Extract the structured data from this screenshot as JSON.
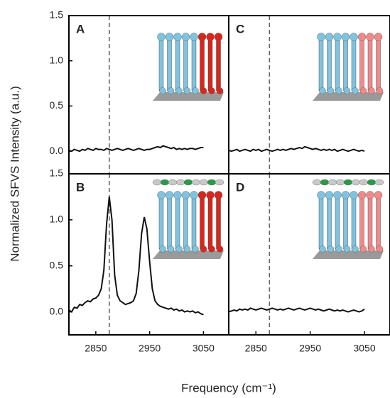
{
  "shared": {
    "ylabel": "Normalized SFVS Intensity (a.u.)",
    "xlabel": "Frequency (cm⁻¹)"
  },
  "chart_data": [
    {
      "type": "line",
      "label": "A",
      "color": "#111111",
      "reference_line_x": 2875,
      "xlim": [
        2800,
        3097
      ],
      "ylim": [
        -0.25,
        1.5
      ],
      "yticks": [
        {
          "value": 0,
          "label": "0.0"
        },
        {
          "value": 0.5,
          "label": "0.5"
        },
        {
          "value": 1,
          "label": "1.0"
        },
        {
          "value": 1.5,
          "label": "1.5"
        }
      ],
      "x": [
        2800,
        2805,
        2810,
        2815,
        2820,
        2825,
        2830,
        2835,
        2840,
        2845,
        2850,
        2855,
        2860,
        2865,
        2870,
        2875,
        2880,
        2885,
        2890,
        2895,
        2900,
        2905,
        2910,
        2915,
        2920,
        2925,
        2930,
        2935,
        2940,
        2945,
        2950,
        2955,
        2960,
        2965,
        2970,
        2975,
        2980,
        2985,
        2990,
        2995,
        3000,
        3005,
        3010,
        3015,
        3020,
        3025,
        3030,
        3035,
        3040,
        3045,
        3050
      ],
      "values": [
        0.01,
        0.0,
        0.02,
        0.01,
        0.0,
        0.02,
        0.01,
        0.03,
        0.02,
        0.01,
        0.03,
        0.02,
        0.02,
        0.01,
        0.03,
        0.02,
        0.01,
        0.02,
        0.03,
        0.02,
        0.01,
        0.02,
        0.03,
        0.02,
        0.01,
        0.02,
        0.03,
        0.02,
        0.01,
        0.02,
        0.02,
        0.03,
        0.04,
        0.05,
        0.04,
        0.06,
        0.05,
        0.04,
        0.03,
        0.04,
        0.02,
        0.03,
        0.02,
        0.03,
        0.02,
        0.03,
        0.03,
        0.02,
        0.03,
        0.04,
        0.04
      ]
    },
    {
      "type": "line",
      "label": "C",
      "color": "#111111",
      "reference_line_x": 2875,
      "xlim": [
        2800,
        3097
      ],
      "ylim": [
        -0.25,
        1.5
      ],
      "x": [
        2800,
        2805,
        2810,
        2815,
        2820,
        2825,
        2830,
        2835,
        2840,
        2845,
        2850,
        2855,
        2860,
        2865,
        2870,
        2875,
        2880,
        2885,
        2890,
        2895,
        2900,
        2905,
        2910,
        2915,
        2920,
        2925,
        2930,
        2935,
        2940,
        2945,
        2950,
        2955,
        2960,
        2965,
        2970,
        2975,
        2980,
        2985,
        2990,
        2995,
        3000,
        3005,
        3010,
        3015,
        3020,
        3025,
        3030,
        3035,
        3040,
        3045,
        3050
      ],
      "values": [
        0.01,
        0.0,
        0.01,
        0.02,
        0.0,
        0.01,
        0.02,
        0.01,
        0.0,
        0.02,
        0.01,
        0.02,
        0.0,
        0.01,
        0.02,
        0.01,
        0.0,
        0.01,
        0.02,
        0.01,
        0.02,
        0.01,
        0.02,
        0.03,
        0.02,
        0.03,
        0.04,
        0.03,
        0.05,
        0.04,
        0.03,
        0.02,
        0.03,
        0.02,
        0.01,
        0.02,
        0.01,
        0.02,
        0.01,
        0.02,
        0.0,
        0.01,
        0.02,
        0.01,
        0.0,
        0.01,
        0.02,
        0.01,
        0.0,
        0.01,
        0.0
      ]
    },
    {
      "type": "line",
      "label": "B",
      "color": "#111111",
      "reference_line_x": 2875,
      "xlim": [
        2800,
        3097
      ],
      "ylim": [
        -0.25,
        1.5
      ],
      "yticks": [
        {
          "value": 0,
          "label": "0.0"
        },
        {
          "value": 0.5,
          "label": "0.5"
        },
        {
          "value": 1,
          "label": "1.0"
        },
        {
          "value": 1.5,
          "label": "1.5"
        }
      ],
      "xticks": [
        2850,
        2950,
        3050
      ],
      "x": [
        2800,
        2805,
        2810,
        2815,
        2820,
        2825,
        2830,
        2835,
        2840,
        2845,
        2850,
        2855,
        2860,
        2865,
        2870,
        2875,
        2880,
        2885,
        2890,
        2895,
        2900,
        2905,
        2910,
        2915,
        2920,
        2925,
        2930,
        2935,
        2940,
        2945,
        2950,
        2955,
        2960,
        2965,
        2970,
        2975,
        2980,
        2985,
        2990,
        2995,
        3000,
        3005,
        3010,
        3015,
        3020,
        3025,
        3030,
        3035,
        3040,
        3045,
        3050
      ],
      "values": [
        0.02,
        0.0,
        0.05,
        0.04,
        0.08,
        0.07,
        0.1,
        0.12,
        0.11,
        0.14,
        0.15,
        0.18,
        0.25,
        0.45,
        0.95,
        1.25,
        1.0,
        0.4,
        0.18,
        0.12,
        0.1,
        0.08,
        0.09,
        0.1,
        0.12,
        0.2,
        0.45,
        0.85,
        1.03,
        0.9,
        0.55,
        0.25,
        0.12,
        0.08,
        0.06,
        0.05,
        0.04,
        0.03,
        0.04,
        0.02,
        0.03,
        0.01,
        0.02,
        0.0,
        0.01,
        0.0,
        0.01,
        -0.01,
        0.0,
        -0.02,
        -0.03
      ]
    },
    {
      "type": "line",
      "label": "D",
      "color": "#111111",
      "reference_line_x": 2875,
      "xlim": [
        2800,
        3097
      ],
      "ylim": [
        -0.25,
        1.5
      ],
      "xticks": [
        2850,
        2950,
        3050
      ],
      "x": [
        2800,
        2805,
        2810,
        2815,
        2820,
        2825,
        2830,
        2835,
        2840,
        2845,
        2850,
        2855,
        2860,
        2865,
        2870,
        2875,
        2880,
        2885,
        2890,
        2895,
        2900,
        2905,
        2910,
        2915,
        2920,
        2925,
        2930,
        2935,
        2940,
        2945,
        2950,
        2955,
        2960,
        2965,
        2970,
        2975,
        2980,
        2985,
        2990,
        2995,
        3000,
        3005,
        3010,
        3015,
        3020,
        3025,
        3030,
        3035,
        3040,
        3045,
        3050
      ],
      "values": [
        0.0,
        0.01,
        0.02,
        0.01,
        0.03,
        0.02,
        0.03,
        0.02,
        0.04,
        0.03,
        0.02,
        0.03,
        0.04,
        0.03,
        0.02,
        0.03,
        0.04,
        0.03,
        0.02,
        0.03,
        0.02,
        0.03,
        0.04,
        0.03,
        0.02,
        0.03,
        0.04,
        0.03,
        0.02,
        0.03,
        0.04,
        0.03,
        0.02,
        0.03,
        0.02,
        0.01,
        0.02,
        0.03,
        0.02,
        0.01,
        0.02,
        0.01,
        0.02,
        0.01,
        0.0,
        0.01,
        0.02,
        0.01,
        0.0,
        0.01,
        0.03
      ]
    }
  ]
}
